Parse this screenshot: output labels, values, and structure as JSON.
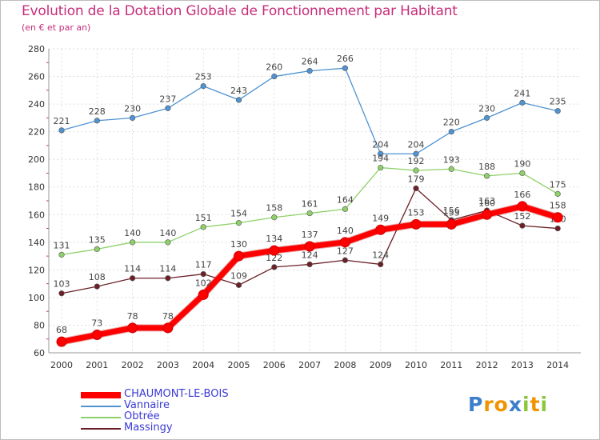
{
  "title": "Evolution de la Dotation Globale de Fonctionnement par Habitant",
  "subtitle": "(en € et par an)",
  "logo": {
    "p": "P",
    "r": "r",
    "o": "o",
    "x": "x",
    "i1": "i",
    "t": "t",
    "i2": "i"
  },
  "colors": {
    "title": "#c62d7a",
    "chaumont": "#ff0000",
    "vannaire": "#4f93d1",
    "obtree": "#8ed16a",
    "massingy": "#6b2027"
  },
  "chart_data": {
    "type": "line",
    "title": "Evolution de la Dotation Globale de Fonctionnement par Habitant",
    "subtitle": "(en € et par an)",
    "x": [
      "2000",
      "2001",
      "2002",
      "2003",
      "2004",
      "2005",
      "2006",
      "2007",
      "2008",
      "2009",
      "2010",
      "2011",
      "2012",
      "2013",
      "2014"
    ],
    "yticks": [
      "60",
      "80",
      "100",
      "120",
      "140",
      "160",
      "180",
      "200",
      "220",
      "240",
      "260",
      "280"
    ],
    "ylim": [
      60,
      280
    ],
    "grid": true,
    "legend_position": "bottom-left",
    "series": [
      {
        "name": "CHAUMONT-LE-BOIS",
        "color": "#ff0000",
        "width": 7,
        "values": [
          68,
          73,
          78,
          78,
          102,
          130,
          134,
          137,
          140,
          149,
          153,
          153,
          160,
          166,
          158
        ],
        "labels": [
          "68",
          "73",
          "78",
          "78",
          "102",
          "130",
          "134",
          "137",
          "140",
          "149",
          "153",
          "153",
          "160",
          "166",
          "158"
        ]
      },
      {
        "name": "Vannaire",
        "color": "#4f93d1",
        "width": 1.3,
        "values": [
          221,
          228,
          230,
          237,
          253,
          243,
          260,
          264,
          266,
          204,
          204,
          220,
          230,
          241,
          235
        ],
        "labels": [
          "221",
          "228",
          "230",
          "237",
          "253",
          "243",
          "260",
          "264",
          "266",
          "204",
          "204",
          "220",
          "230",
          "241",
          "235"
        ]
      },
      {
        "name": "Obtrée",
        "color": "#8ed16a",
        "width": 1.3,
        "values": [
          131,
          135,
          140,
          140,
          151,
          154,
          158,
          161,
          164,
          194,
          192,
          193,
          188,
          190,
          175
        ],
        "labels": [
          "131",
          "135",
          "140",
          "140",
          "151",
          "154",
          "158",
          "161",
          "164",
          "194",
          "192",
          "193",
          "188",
          "190",
          "175"
        ]
      },
      {
        "name": "Massingy",
        "color": "#6b2027",
        "width": 1.3,
        "values": [
          103,
          108,
          114,
          114,
          117,
          109,
          122,
          124,
          127,
          124,
          179,
          156,
          163,
          152,
          150
        ],
        "labels": [
          "103",
          "108",
          "114",
          "114",
          "117",
          "109",
          "122",
          "124",
          "127",
          "124",
          "179",
          "156",
          "163",
          "152",
          "150"
        ]
      }
    ]
  }
}
